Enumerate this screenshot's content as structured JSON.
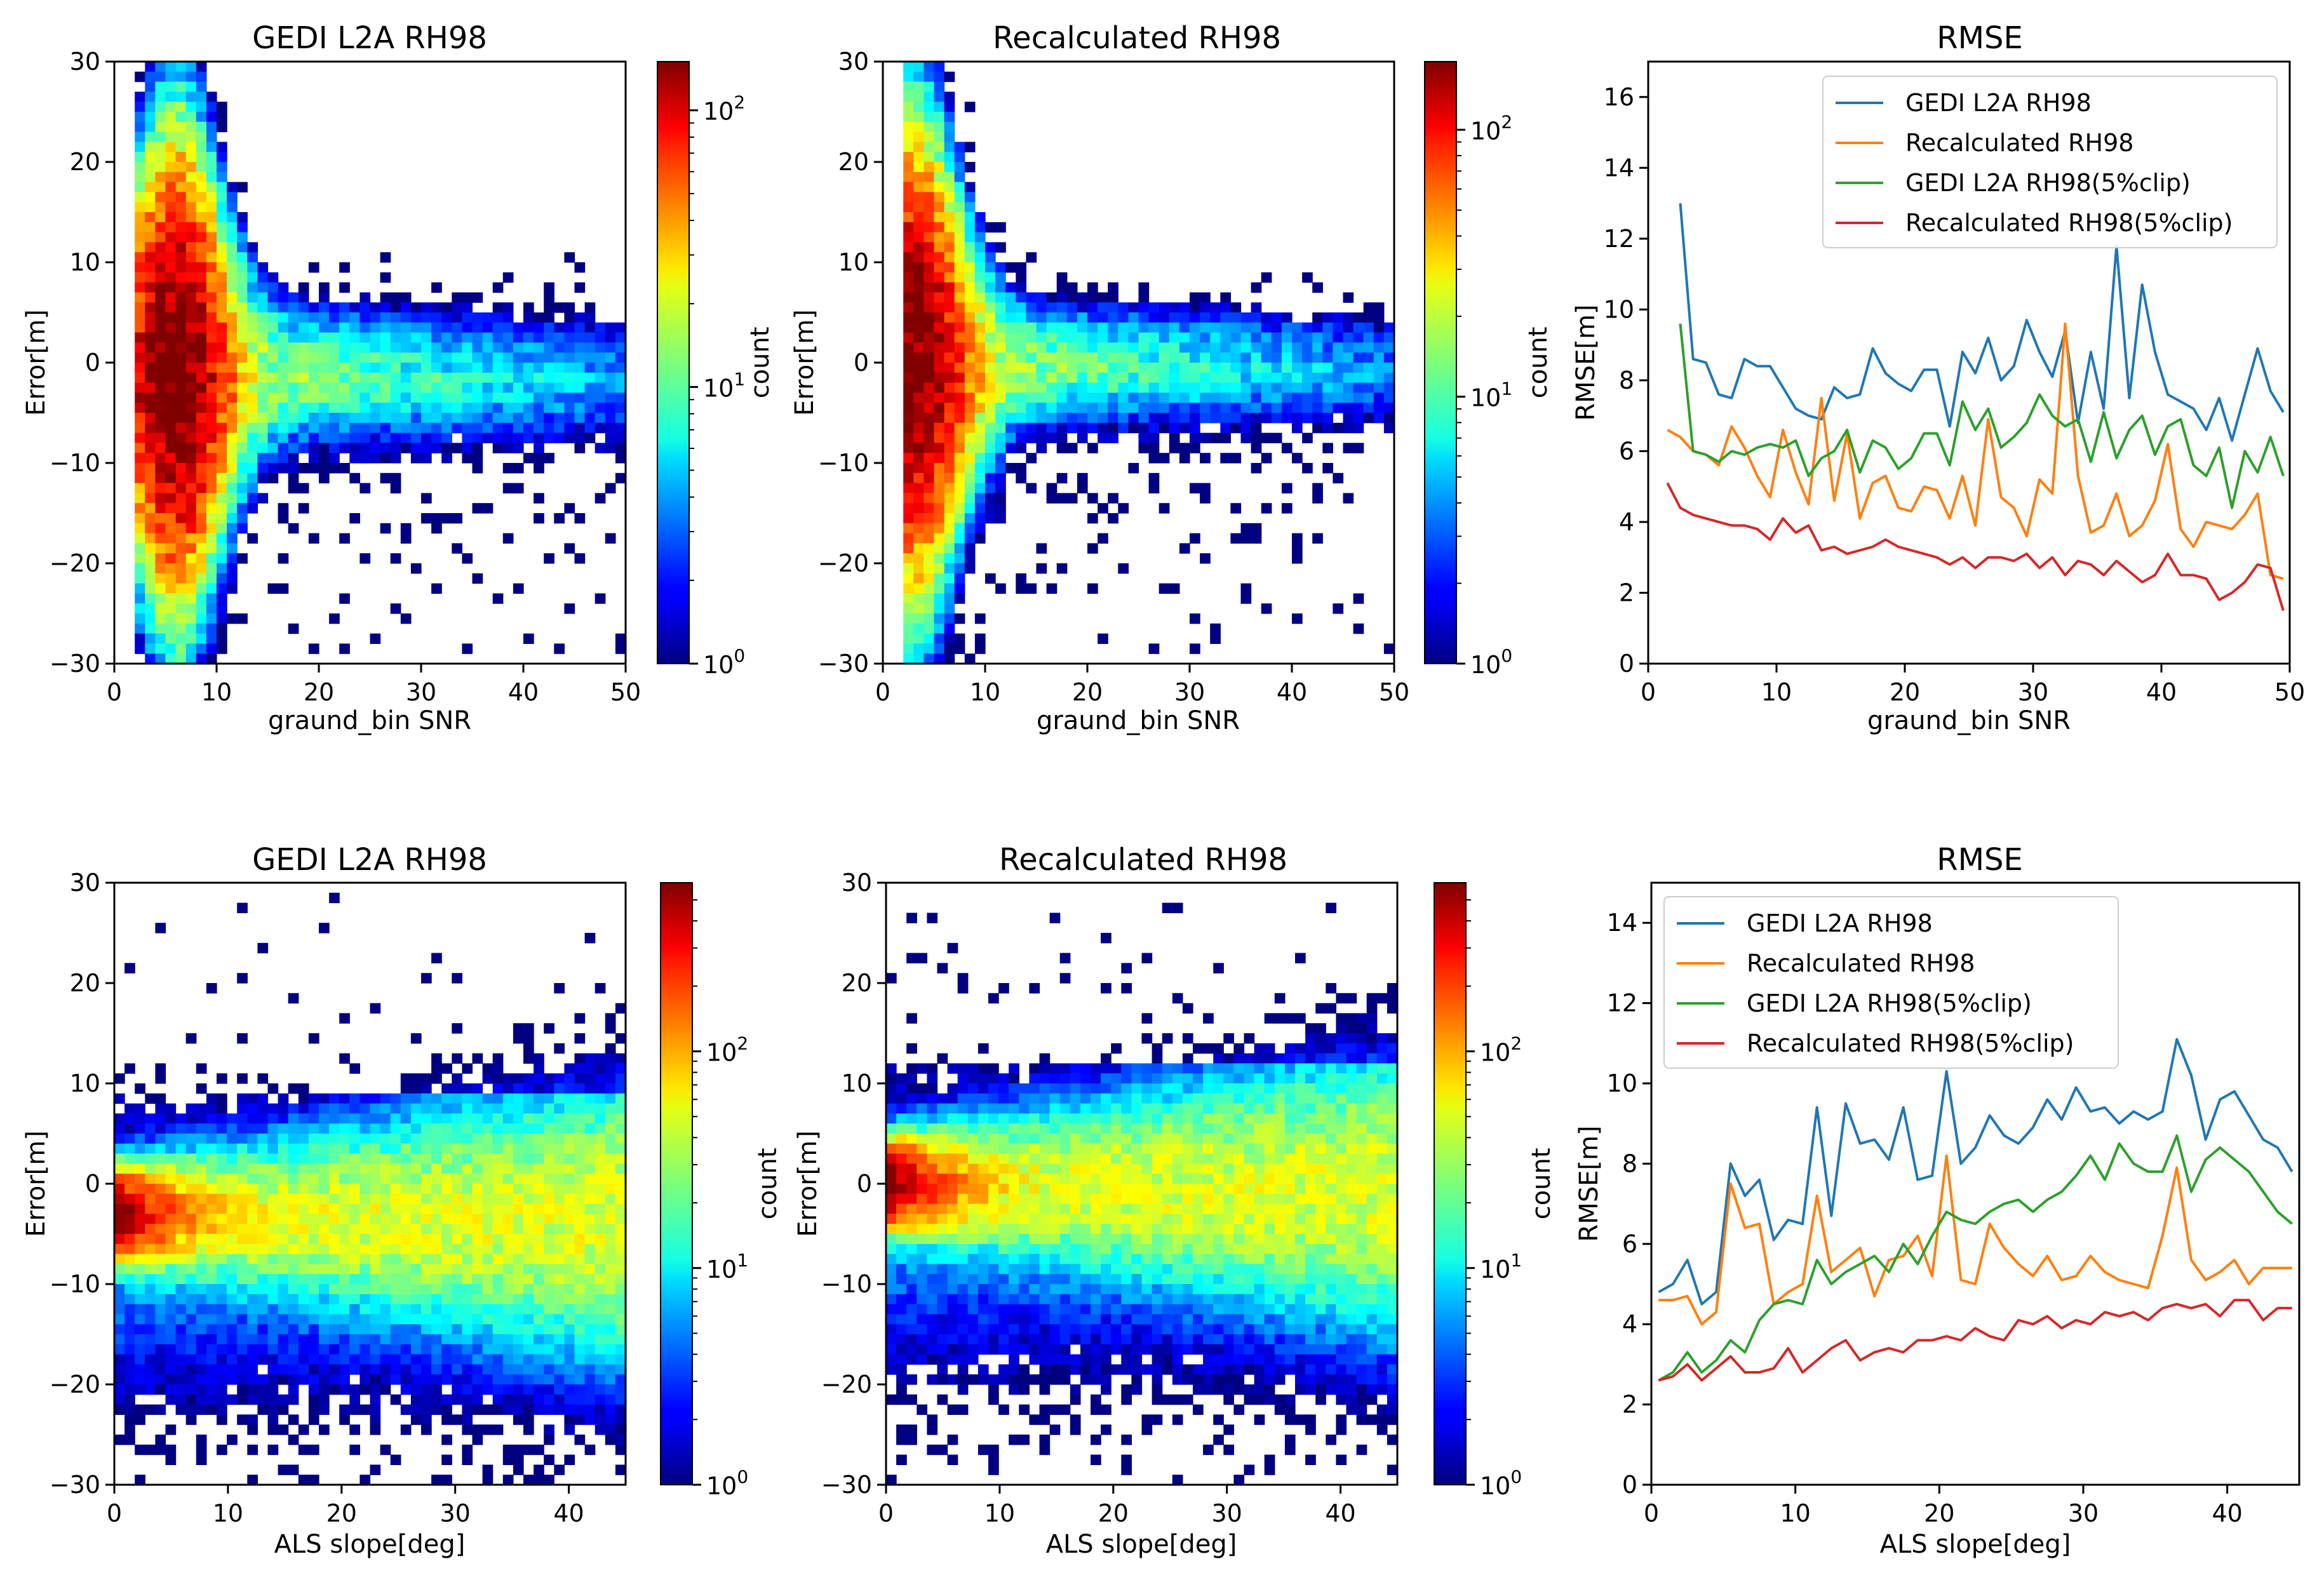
{
  "chart_data": [
    {
      "type": "heatmap",
      "title": "GEDI L2A RH98",
      "xlabel": "graund_bin SNR",
      "ylabel": "Error[m]",
      "xlim": [
        0,
        50
      ],
      "ylim": [
        -30,
        30
      ],
      "xticks": [
        "0",
        "10",
        "20",
        "30",
        "40",
        "50"
      ],
      "yticks": [
        "30",
        "20",
        "10",
        "0",
        "−10",
        "−20",
        "−30"
      ],
      "colorbar": {
        "label": "count",
        "scale": "log",
        "vmin": 1,
        "vmax": 150,
        "ticks": [
          "10^0",
          "10^1",
          "10^2"
        ]
      },
      "density_model": {
        "kind": "snr",
        "peak_x": 6,
        "peak_count": 150,
        "near_sd": 3.0,
        "far_sd": 3.5,
        "bias": -1
      }
    },
    {
      "type": "heatmap",
      "title": "Recalculated RH98",
      "xlabel": "graund_bin SNR",
      "ylabel": "Error[m]",
      "xlim": [
        0,
        50
      ],
      "ylim": [
        -30,
        30
      ],
      "xticks": [
        "0",
        "10",
        "20",
        "30",
        "40",
        "50"
      ],
      "yticks": [
        "30",
        "20",
        "10",
        "0",
        "−10",
        "−20",
        "−30"
      ],
      "colorbar": {
        "label": "count",
        "scale": "log",
        "vmin": 1,
        "vmax": 180,
        "ticks": [
          "10^0",
          "10^1",
          "10^2"
        ]
      },
      "density_model": {
        "kind": "snr",
        "peak_x": 3,
        "peak_count": 180,
        "near_sd": 3.5,
        "far_sd": 3.0,
        "bias": 0
      }
    },
    {
      "type": "line",
      "title": "RMSE",
      "xlabel": "graund_bin SNR",
      "ylabel": "RMSE[m]",
      "xlim": [
        0,
        50
      ],
      "ylim": [
        0,
        17
      ],
      "xticks": [
        "0",
        "10",
        "20",
        "30",
        "40",
        "50"
      ],
      "yticks": [
        "0",
        "2",
        "4",
        "6",
        "8",
        "10",
        "12",
        "14",
        "16"
      ],
      "legend": "top-right",
      "x": [
        0.5,
        1.5,
        2.5,
        3.5,
        4.5,
        5.5,
        6.5,
        7.5,
        8.5,
        9.5,
        10.5,
        11.5,
        12.5,
        13.5,
        14.5,
        15.5,
        16.5,
        17.5,
        18.5,
        19.5,
        20.5,
        21.5,
        22.5,
        23.5,
        24.5,
        25.5,
        26.5,
        27.5,
        28.5,
        29.5,
        30.5,
        31.5,
        32.5,
        33.5,
        34.5,
        35.5,
        36.5,
        37.5,
        38.5,
        39.5,
        40.5,
        41.5,
        42.5,
        43.5,
        44.5,
        45.5,
        46.5,
        47.5,
        48.5,
        49.5
      ],
      "series": [
        {
          "name": "GEDI L2A RH98",
          "color": "#1f77b4",
          "values": [
            null,
            null,
            13.0,
            8.6,
            8.5,
            7.6,
            7.5,
            8.6,
            8.4,
            8.4,
            7.8,
            7.2,
            7.0,
            6.9,
            7.8,
            7.5,
            7.6,
            8.9,
            8.2,
            7.9,
            7.7,
            8.3,
            8.3,
            6.7,
            8.8,
            8.2,
            9.2,
            8.0,
            8.4,
            9.7,
            8.8,
            8.1,
            9.4,
            6.8,
            8.8,
            7.2,
            11.8,
            7.5,
            10.7,
            8.8,
            7.6,
            7.4,
            7.2,
            6.6,
            7.5,
            6.3,
            7.6,
            8.9,
            7.7,
            7.1
          ]
        },
        {
          "name": "Recalculated RH98",
          "color": "#ff7f0e",
          "values": [
            null,
            6.6,
            6.4,
            6.0,
            5.9,
            5.6,
            6.7,
            6.1,
            5.3,
            4.7,
            6.6,
            5.4,
            4.5,
            7.5,
            4.6,
            6.5,
            4.1,
            5.1,
            5.3,
            4.4,
            4.3,
            5.0,
            4.9,
            4.1,
            5.3,
            3.9,
            6.9,
            4.7,
            4.4,
            3.6,
            5.2,
            4.8,
            9.6,
            5.3,
            3.7,
            3.9,
            4.8,
            3.6,
            3.9,
            4.6,
            6.2,
            3.8,
            3.3,
            4.0,
            3.9,
            3.8,
            4.2,
            4.8,
            2.5,
            2.4
          ]
        },
        {
          "name": "GEDI L2A RH98(5%clip)",
          "color": "#2ca02c",
          "values": [
            null,
            null,
            9.6,
            6.0,
            5.9,
            5.7,
            6.0,
            5.9,
            6.1,
            6.2,
            6.1,
            6.3,
            5.3,
            5.8,
            6.0,
            6.6,
            5.4,
            6.3,
            6.1,
            5.5,
            5.8,
            6.5,
            6.5,
            5.6,
            7.4,
            6.6,
            7.2,
            6.1,
            6.4,
            6.8,
            7.6,
            7.0,
            6.7,
            6.9,
            5.7,
            7.1,
            5.8,
            6.6,
            7.0,
            5.9,
            6.7,
            6.9,
            5.6,
            5.3,
            6.1,
            4.4,
            6.0,
            5.4,
            6.4,
            5.3
          ]
        },
        {
          "name": "Recalculated RH98(5%clip)",
          "color": "#d62728",
          "values": [
            null,
            5.1,
            4.4,
            4.2,
            4.1,
            4.0,
            3.9,
            3.9,
            3.8,
            3.5,
            4.1,
            3.7,
            3.9,
            3.2,
            3.3,
            3.1,
            3.2,
            3.3,
            3.5,
            3.3,
            3.2,
            3.1,
            3.0,
            2.8,
            3.0,
            2.7,
            3.0,
            3.0,
            2.9,
            3.1,
            2.7,
            3.0,
            2.5,
            2.9,
            2.8,
            2.5,
            2.9,
            2.6,
            2.3,
            2.5,
            3.1,
            2.5,
            2.5,
            2.4,
            1.8,
            2.0,
            2.3,
            2.8,
            2.7,
            1.5
          ]
        }
      ]
    },
    {
      "type": "heatmap",
      "title": "GEDI L2A RH98",
      "xlabel": "ALS slope[deg]",
      "ylabel": "Error[m]",
      "xlim": [
        0,
        45
      ],
      "ylim": [
        -30,
        30
      ],
      "xticks": [
        "0",
        "10",
        "20",
        "30",
        "40"
      ],
      "yticks": [
        "30",
        "20",
        "10",
        "0",
        "−10",
        "−20",
        "−30"
      ],
      "colorbar": {
        "label": "count",
        "scale": "log",
        "vmin": 1,
        "vmax": 600,
        "ticks": [
          "10^0",
          "10^1",
          "10^2"
        ]
      },
      "density_model": {
        "kind": "slope",
        "peak_count": 600,
        "bias": -3
      }
    },
    {
      "type": "heatmap",
      "title": "Recalculated RH98",
      "xlabel": "ALS slope[deg]",
      "ylabel": "Error[m]",
      "xlim": [
        0,
        45
      ],
      "ylim": [
        -30,
        30
      ],
      "xticks": [
        "0",
        "10",
        "20",
        "30",
        "40"
      ],
      "yticks": [
        "30",
        "20",
        "10",
        "0",
        "−10",
        "−20",
        "−30"
      ],
      "colorbar": {
        "label": "count",
        "scale": "log",
        "vmin": 1,
        "vmax": 600,
        "ticks": [
          "10^0",
          "10^1",
          "10^2"
        ]
      },
      "density_model": {
        "kind": "slope",
        "peak_count": 600,
        "bias": 0
      }
    },
    {
      "type": "line",
      "title": "RMSE",
      "xlabel": "ALS slope[deg]",
      "ylabel": "RMSE[m]",
      "xlim": [
        0,
        45
      ],
      "ylim": [
        0,
        15
      ],
      "xticks": [
        "0",
        "10",
        "20",
        "30",
        "40"
      ],
      "yticks": [
        "0",
        "2",
        "4",
        "6",
        "8",
        "10",
        "12",
        "14"
      ],
      "legend": "top-left",
      "x": [
        0.5,
        1.5,
        2.5,
        3.5,
        4.5,
        5.5,
        6.5,
        7.5,
        8.5,
        9.5,
        10.5,
        11.5,
        12.5,
        13.5,
        14.5,
        15.5,
        16.5,
        17.5,
        18.5,
        19.5,
        20.5,
        21.5,
        22.5,
        23.5,
        24.5,
        25.5,
        26.5,
        27.5,
        28.5,
        29.5,
        30.5,
        31.5,
        32.5,
        33.5,
        34.5,
        35.5,
        36.5,
        37.5,
        38.5,
        39.5,
        40.5,
        41.5,
        42.5,
        43.5,
        44.5
      ],
      "series": [
        {
          "name": "GEDI L2A RH98",
          "color": "#1f77b4",
          "values": [
            4.8,
            5.0,
            5.6,
            4.5,
            4.8,
            8.0,
            7.2,
            7.6,
            6.1,
            6.6,
            6.5,
            9.4,
            6.7,
            9.5,
            8.5,
            8.6,
            8.1,
            9.4,
            7.6,
            7.7,
            10.3,
            8.0,
            8.4,
            9.2,
            8.7,
            8.5,
            8.9,
            9.6,
            9.1,
            9.9,
            9.3,
            9.4,
            9.0,
            9.3,
            9.1,
            9.3,
            11.1,
            10.2,
            8.6,
            9.6,
            9.8,
            9.2,
            8.6,
            8.4,
            7.8
          ]
        },
        {
          "name": "Recalculated RH98",
          "color": "#ff7f0e",
          "values": [
            4.6,
            4.6,
            4.7,
            4.0,
            4.3,
            7.5,
            6.4,
            6.5,
            4.5,
            4.8,
            5.0,
            7.2,
            5.3,
            5.6,
            5.9,
            4.7,
            5.6,
            5.7,
            6.2,
            5.2,
            8.2,
            5.1,
            5.0,
            6.5,
            5.9,
            5.5,
            5.2,
            5.7,
            5.1,
            5.2,
            5.7,
            5.3,
            5.1,
            5.0,
            4.9,
            6.2,
            7.9,
            5.6,
            5.1,
            5.3,
            5.6,
            5.0,
            5.4,
            5.4,
            5.4
          ]
        },
        {
          "name": "GEDI L2A RH98(5%clip)",
          "color": "#2ca02c",
          "values": [
            2.6,
            2.8,
            3.3,
            2.8,
            3.1,
            3.6,
            3.3,
            4.1,
            4.5,
            4.6,
            4.5,
            5.6,
            5.0,
            5.3,
            5.5,
            5.7,
            5.3,
            6.0,
            5.5,
            6.2,
            6.8,
            6.6,
            6.5,
            6.8,
            7.0,
            7.1,
            6.8,
            7.1,
            7.3,
            7.7,
            8.2,
            7.6,
            8.5,
            8.0,
            7.8,
            7.8,
            8.7,
            7.3,
            8.1,
            8.4,
            8.1,
            7.8,
            7.3,
            6.8,
            6.5
          ]
        },
        {
          "name": "Recalculated RH98(5%clip)",
          "color": "#d62728",
          "values": [
            2.6,
            2.7,
            3.0,
            2.6,
            2.9,
            3.2,
            2.8,
            2.8,
            2.9,
            3.4,
            2.8,
            3.1,
            3.4,
            3.6,
            3.1,
            3.3,
            3.4,
            3.3,
            3.6,
            3.6,
            3.7,
            3.6,
            3.9,
            3.7,
            3.6,
            4.1,
            4.0,
            4.2,
            3.9,
            4.1,
            4.0,
            4.3,
            4.2,
            4.3,
            4.1,
            4.4,
            4.5,
            4.4,
            4.5,
            4.2,
            4.6,
            4.6,
            4.1,
            4.4,
            4.4
          ]
        }
      ]
    }
  ]
}
